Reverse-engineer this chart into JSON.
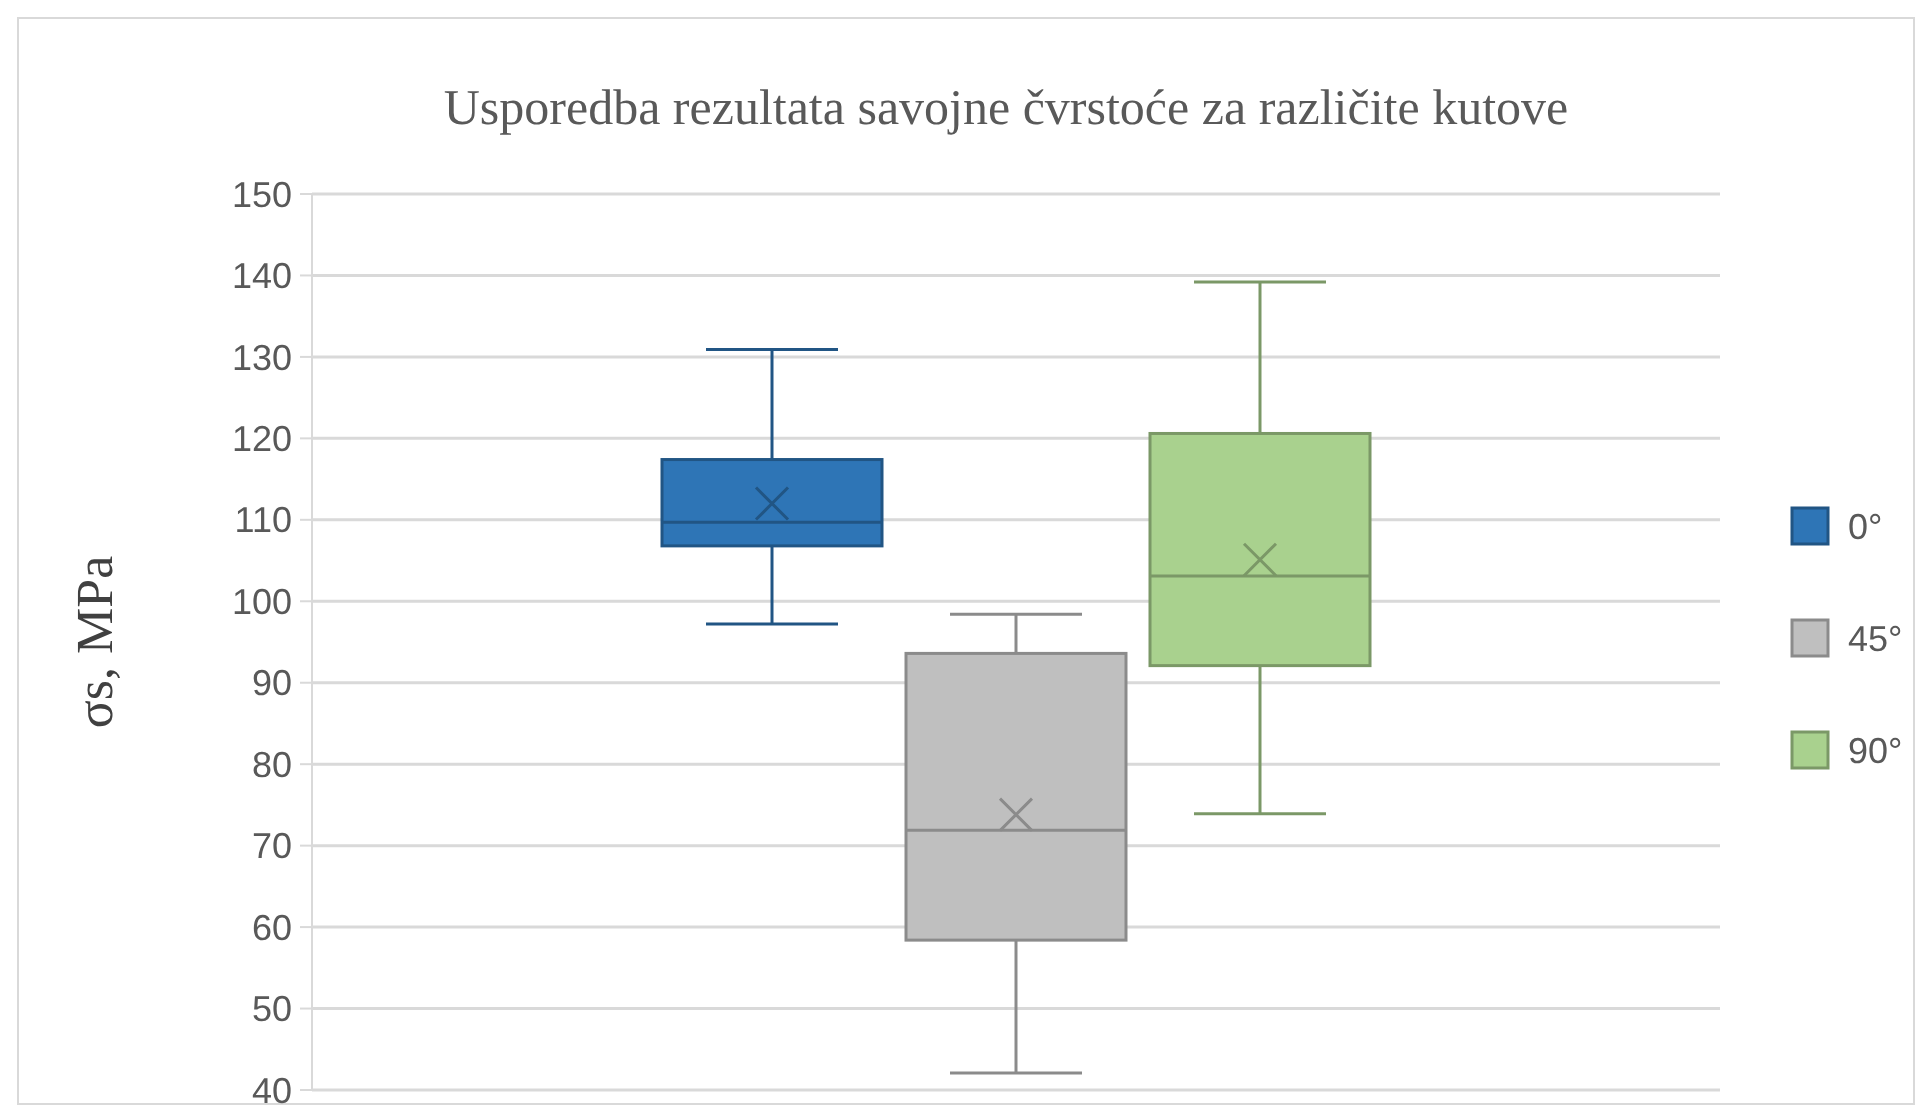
{
  "chart_data": {
    "type": "box",
    "title": "Usporedba rezultata savojne čvrstoće za različite kutove",
    "ylabel": "σs, MPa",
    "categories": [
      null
    ],
    "ylim": [
      40,
      150
    ],
    "yticks": [
      40,
      50,
      60,
      70,
      80,
      90,
      100,
      110,
      120,
      130,
      140,
      150
    ],
    "grid": "y",
    "legend": "right",
    "series": [
      {
        "name": "0°",
        "color": "#2e75b6",
        "boxes": [
          {
            "low": 97.2,
            "q1": 106.8,
            "median": 109.7,
            "q3": 117.4,
            "high": 130.9,
            "mean": 112
          }
        ]
      },
      {
        "name": "45°",
        "color": "#bfbfbf",
        "boxes": [
          {
            "low": 42.1,
            "q1": 58.4,
            "median": 71.9,
            "q3": 93.6,
            "high": 98.4,
            "mean": 73.8
          }
        ]
      },
      {
        "name": "90°",
        "color": "#a9d18e",
        "boxes": [
          {
            "low": 73.9,
            "q1": 92.1,
            "median": 103.1,
            "q3": 120.6,
            "high": 139.2,
            "mean": 105.1
          }
        ]
      }
    ]
  }
}
